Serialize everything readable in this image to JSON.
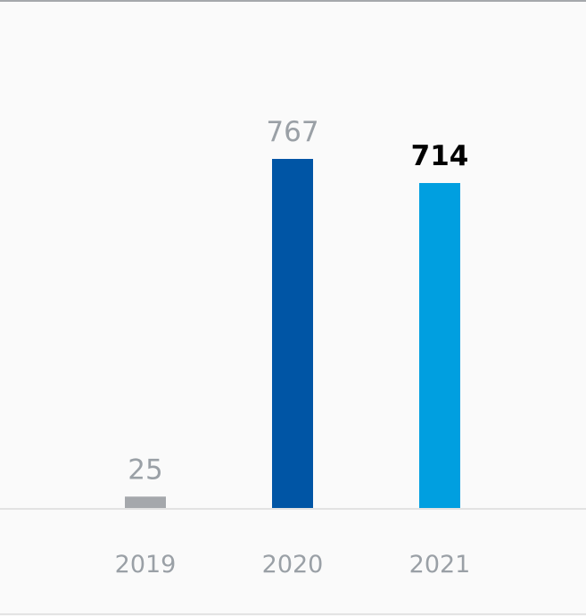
{
  "chart_data": {
    "type": "bar",
    "title": "",
    "xlabel": "",
    "ylabel": "",
    "categories": [
      "2019",
      "2020",
      "2021"
    ],
    "values": [
      25,
      767,
      714
    ],
    "value_labels": [
      "25",
      "767",
      "714"
    ],
    "ylim": [
      0,
      800
    ],
    "grid": false,
    "legend": "none",
    "colors": [
      "#a5a8ac",
      "#0055a5",
      "#009fe0"
    ],
    "label_colors": [
      "#9aa0a6",
      "#9aa0a6",
      "#000000"
    ],
    "label_bold": [
      false,
      false,
      true
    ],
    "baseline_color": "#e2e2e2",
    "background": "#fafafa"
  }
}
